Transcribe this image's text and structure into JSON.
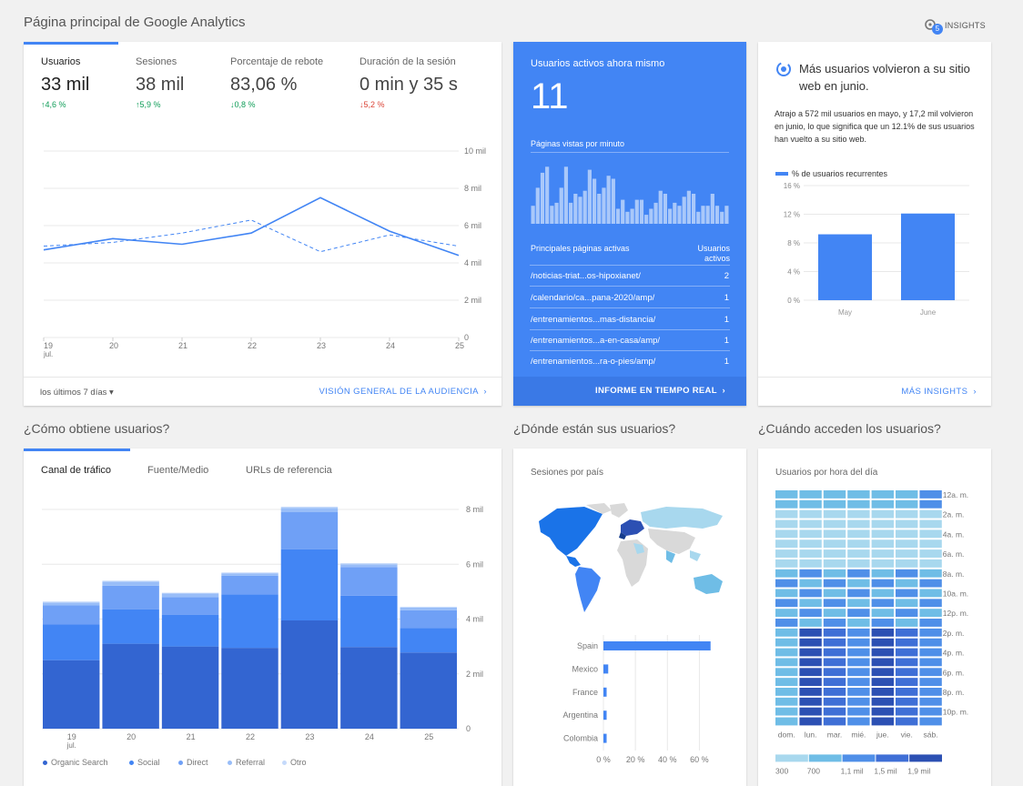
{
  "page": {
    "title": "Página principal de Google Analytics",
    "insights_label": "INSIGHTS",
    "insights_count": "5"
  },
  "audience": {
    "metrics": [
      {
        "label": "Usuarios",
        "value": "33 mil",
        "change": "↑4,6 %",
        "dir": "up"
      },
      {
        "label": "Sesiones",
        "value": "38 mil",
        "change": "↑5,9 %",
        "dir": "up"
      },
      {
        "label": "Porcentaje de rebote",
        "value": "83,06 %",
        "change": "↓0,8 %",
        "dir": "up"
      },
      {
        "label": "Duración de la sesión",
        "value": "0 min y 35 s",
        "change": "↓5,2 %",
        "dir": "down"
      }
    ],
    "date_range": "los últimos 7 días",
    "link": "VISIÓN GENERAL DE LA AUDIENCIA"
  },
  "chart_data": [
    {
      "type": "line",
      "x": [
        "19 jul.",
        "20",
        "21",
        "22",
        "23",
        "24",
        "25"
      ],
      "series": [
        {
          "values": [
            4700,
            5300,
            5000,
            5600,
            7500,
            5700,
            4400
          ]
        },
        {
          "values": [
            4900,
            5100,
            5600,
            6300,
            4600,
            5500,
            4900
          ]
        }
      ],
      "y_ticks": [
        "0",
        "2 mil",
        "4 mil",
        "6 mil",
        "8 mil",
        "10 mil"
      ],
      "ylim": [
        0,
        10000
      ]
    },
    {
      "type": "bar",
      "x": [
        "19 jul.",
        "20",
        "21",
        "22",
        "23",
        "24",
        "25"
      ],
      "series": [
        {
          "name": "Organic Search",
          "values": [
            2500,
            3100,
            3000,
            2950,
            3950,
            2980,
            2780
          ]
        },
        {
          "name": "Social",
          "values": [
            1300,
            1250,
            1150,
            1950,
            2600,
            1870,
            890
          ]
        },
        {
          "name": "Direct",
          "values": [
            700,
            870,
            650,
            680,
            1350,
            1050,
            650
          ]
        },
        {
          "name": "Referral",
          "values": [
            100,
            140,
            130,
            90,
            150,
            100,
            100
          ]
        },
        {
          "name": "Otro",
          "values": [
            40,
            40,
            30,
            30,
            50,
            40,
            30
          ]
        }
      ],
      "y_ticks": [
        "0",
        "2 mil",
        "4 mil",
        "6 mil",
        "8 mil"
      ],
      "ylim": [
        0,
        8000
      ]
    },
    {
      "type": "bar",
      "categories": [
        "Spain",
        "Mexico",
        "France",
        "Argentina",
        "Colombia"
      ],
      "values": [
        67,
        3,
        2,
        2,
        2
      ],
      "x_ticks": [
        "0 %",
        "20 %",
        "40 %",
        "60 %"
      ],
      "xlim": [
        0,
        70
      ]
    },
    {
      "type": "bar",
      "categories": [
        "May",
        "June"
      ],
      "series": [
        {
          "name": "% de usuarios recurrentes",
          "values": [
            9.2,
            12.1
          ]
        }
      ],
      "y_ticks": [
        "0 %",
        "4 %",
        "8 %",
        "12 %",
        "16 %"
      ],
      "ylim": [
        0,
        16
      ]
    }
  ],
  "realtime": {
    "title": "Usuarios activos ahora mismo",
    "count": "11",
    "pageviews_label": "Páginas vistas por minuto",
    "pageviews": [
      0.3,
      0.6,
      0.85,
      0.95,
      0.3,
      0.35,
      0.6,
      0.95,
      0.35,
      0.5,
      0.45,
      0.55,
      0.9,
      0.75,
      0.5,
      0.6,
      0.8,
      0.75,
      0.25,
      0.4,
      0.2,
      0.25,
      0.4,
      0.4,
      0.15,
      0.25,
      0.35,
      0.55,
      0.5,
      0.25,
      0.35,
      0.3,
      0.45,
      0.55,
      0.5,
      0.2,
      0.3,
      0.3,
      0.5,
      0.3,
      0.2,
      0.3
    ],
    "table_header_page": "Principales páginas activas",
    "table_header_users": "Usuarios activos",
    "rows": [
      {
        "page": "/noticias-triat...os-hipoxianet/",
        "users": "2"
      },
      {
        "page": "/calendario/ca...pana-2020/amp/",
        "users": "1"
      },
      {
        "page": "/entrenamientos...mas-distancia/",
        "users": "1"
      },
      {
        "page": "/entrenamientos...a-en-casa/amp/",
        "users": "1"
      },
      {
        "page": "/entrenamientos...ra-o-pies/amp/",
        "users": "1"
      }
    ],
    "link": "INFORME EN TIEMPO REAL"
  },
  "insight": {
    "title": "Más usuarios volvieron a su sitio web en junio.",
    "body": "Atrajo a 572 mil usuarios en mayo, y 17,2 mil volvieron en junio, lo que significa que un 12.1% de sus usuarios han vuelto a su sitio web.",
    "legend": "% de usuarios recurrentes",
    "link": "MÁS INSIGHTS"
  },
  "sections": {
    "acquisition": "¿Cómo obtiene usuarios?",
    "geo": "¿Dónde están sus usuarios?",
    "time": "¿Cuándo acceden los usuarios?"
  },
  "acquisition": {
    "tabs": [
      "Canal de tráfico",
      "Fuente/Medio",
      "URLs de referencia"
    ]
  },
  "geo": {
    "label": "Sesiones por país"
  },
  "hourly": {
    "label": "Usuarios por hora del día",
    "days": [
      "dom.",
      "lun.",
      "mar.",
      "mié.",
      "jue.",
      "vie.",
      "sáb."
    ],
    "hours": [
      "12a. m.",
      "2a. m.",
      "4a. m.",
      "6a. m.",
      "8a. m.",
      "10a. m.",
      "12p. m.",
      "2p. m.",
      "4p. m.",
      "6p. m.",
      "8p. m.",
      "10p. m."
    ],
    "scale": [
      "300",
      "700",
      "1,1 mil",
      "1,5 mil",
      "1,9 mil"
    ],
    "colors": [
      "#a8d8ee",
      "#6fbde6",
      "#4f8fe8",
      "#3f6fd6",
      "#2c50b3"
    ]
  }
}
